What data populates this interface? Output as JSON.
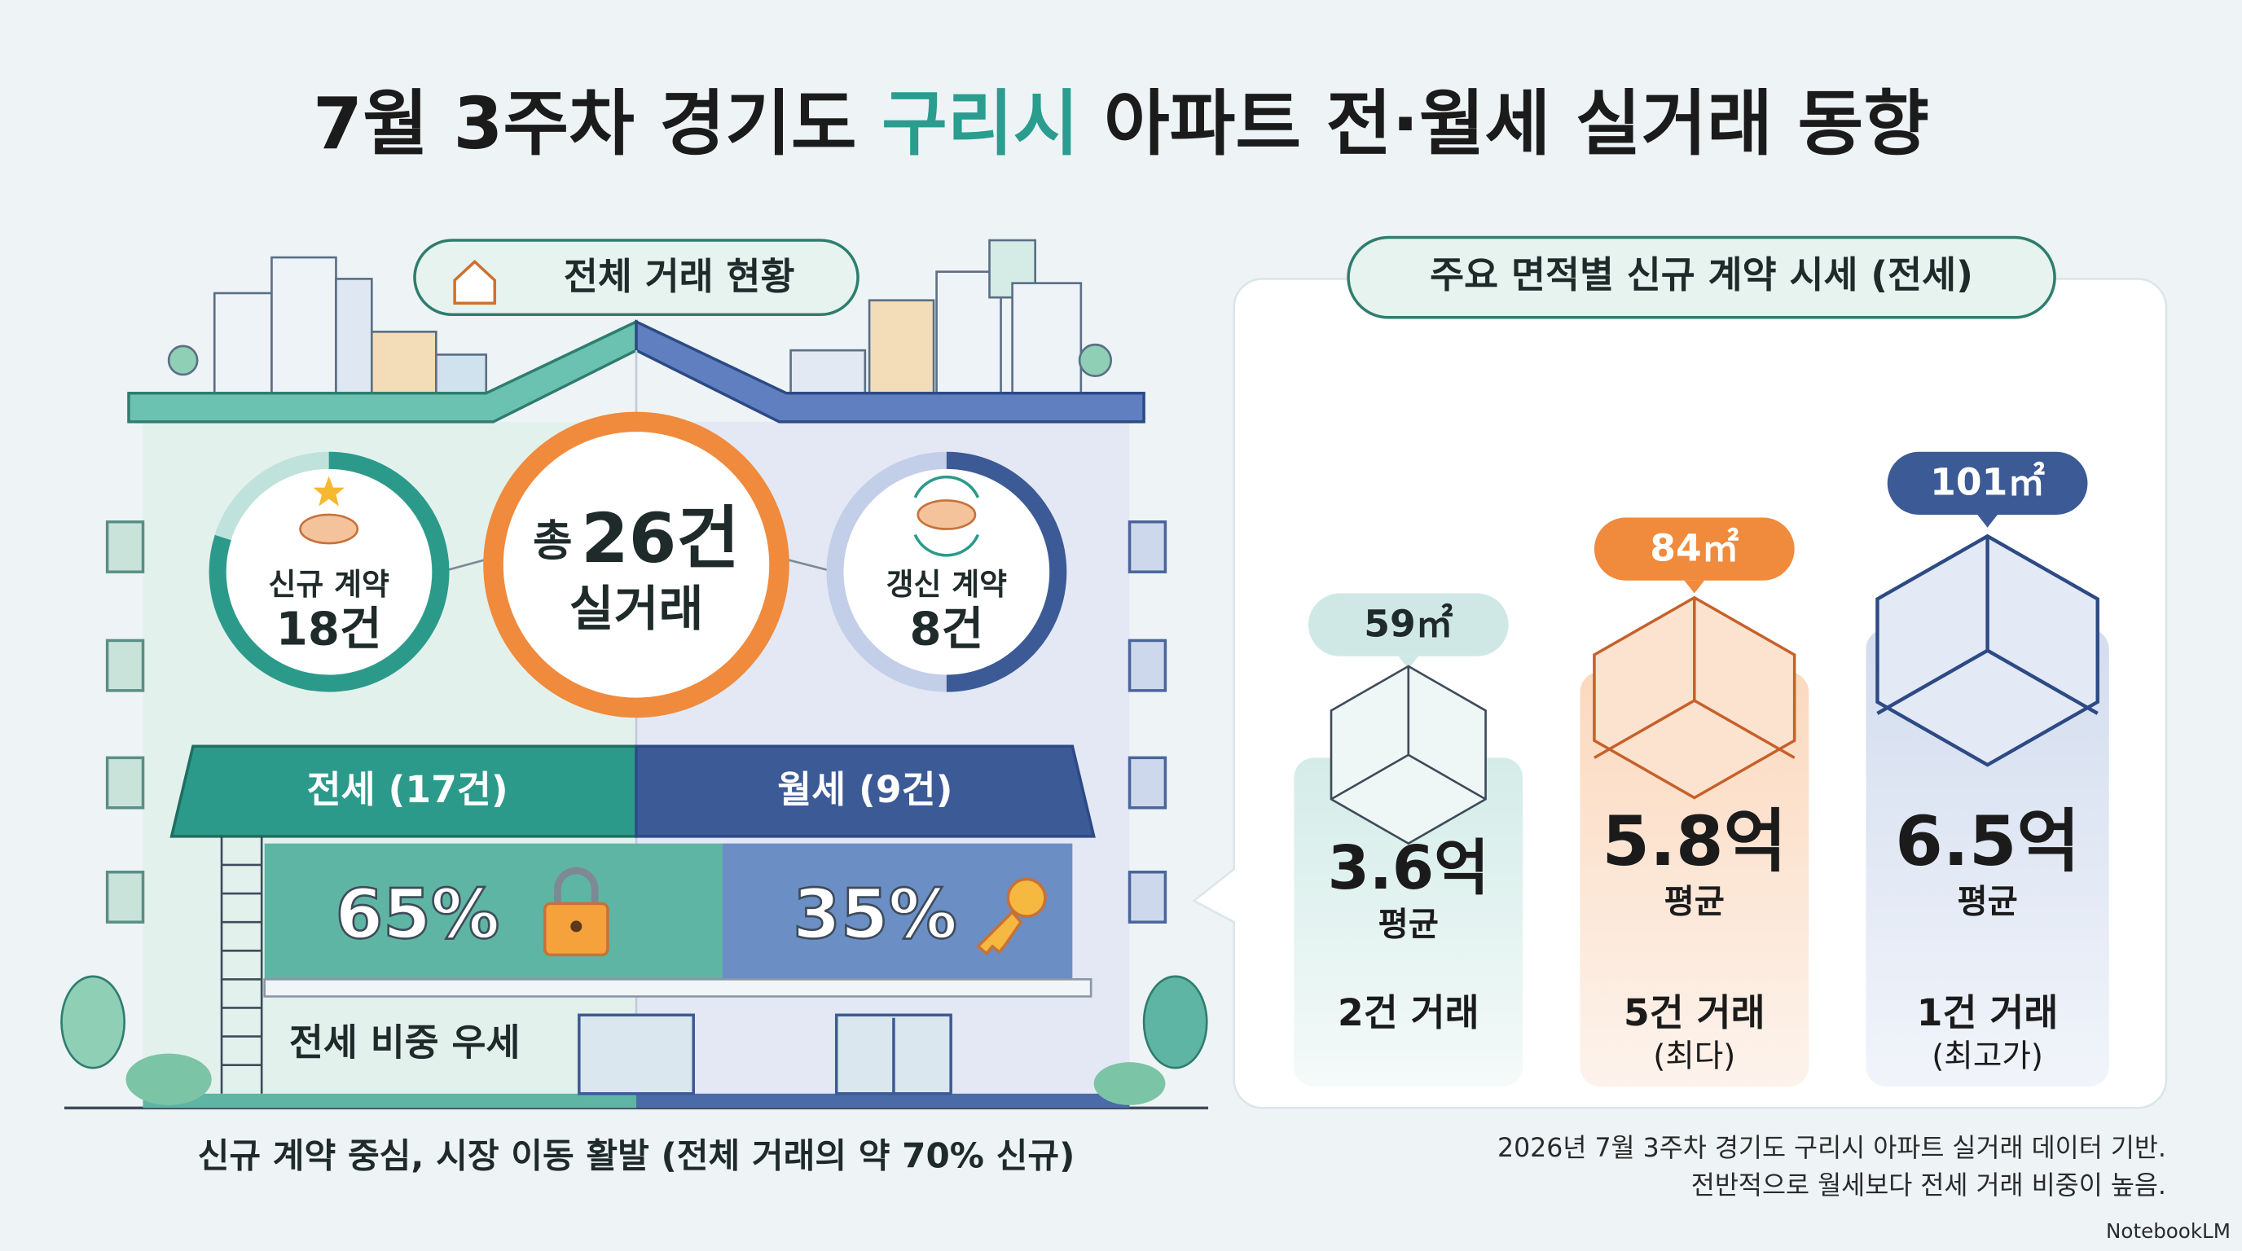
{
  "title": {
    "before": "7월 3주차 경기도 ",
    "highlight": "구리시",
    "after": " 아파트 전·월세 실거래 동향"
  },
  "overview": {
    "label": "전체 거래 현황",
    "total": {
      "prefix": "총",
      "count": "26건",
      "label": "실거래"
    },
    "new_contracts": {
      "label": "신규 계약",
      "count": "18건"
    },
    "renewals": {
      "label": "갱신 계약",
      "count": "8건"
    },
    "jeonse": {
      "header": "전세 (17건)",
      "share": "65%"
    },
    "wolse": {
      "header": "월세 (9건)",
      "share": "35%"
    },
    "sign": "전세 비중 우세",
    "caption": "신규 계약 중심, 시장 이동 활발 (전체 거래의 약 70% 신규)"
  },
  "prices": {
    "title": "주요 면적별 신규 계약 시세 (전세)",
    "cards": [
      {
        "area": "59㎡",
        "price": "3.6억",
        "basis": "평균",
        "deals": "2건 거래"
      },
      {
        "area": "84㎡",
        "price": "5.8억",
        "basis": "평균",
        "deals": "5건 거래",
        "note": "(최다)"
      },
      {
        "area": "101㎡",
        "price": "6.5억",
        "basis": "평균",
        "deals": "1건 거래",
        "note": "(최고가)"
      }
    ]
  },
  "footer": {
    "notes": [
      "2026년 7월 3주차 경기도 구리시 아파트 실거래 데이터 기반.",
      "전반적으로 월세보다 전세 거래 비중이 높음."
    ],
    "brand": "NotebookLM"
  }
}
